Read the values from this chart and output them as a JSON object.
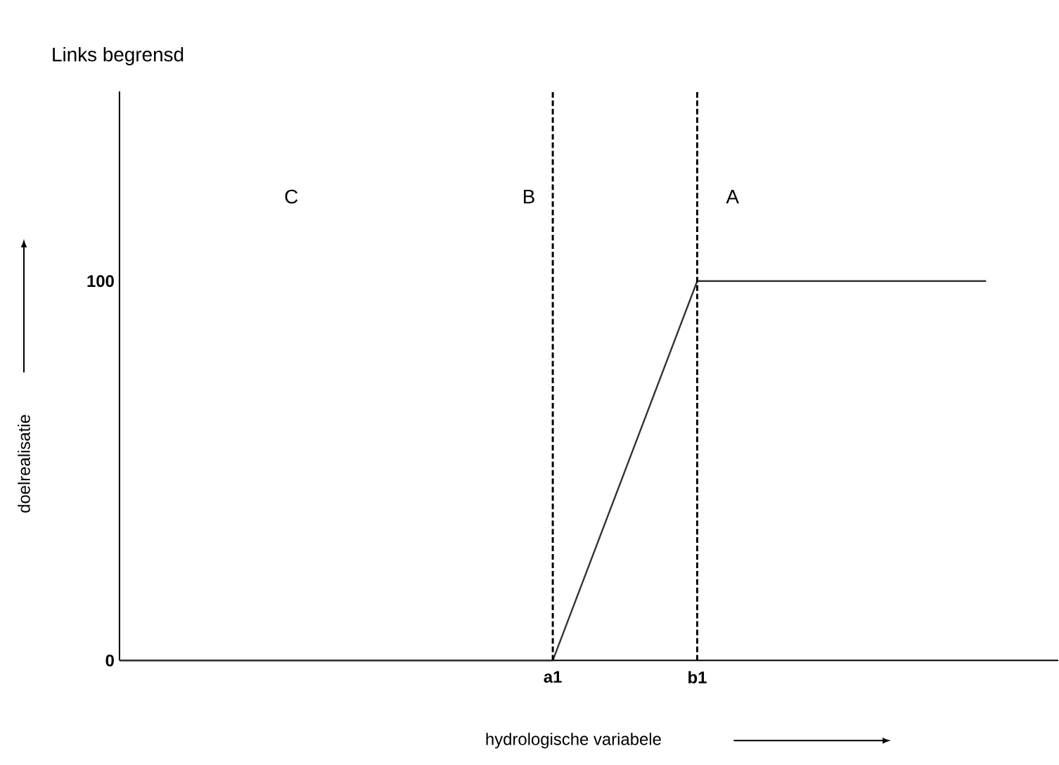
{
  "chart_data": {
    "type": "line",
    "title": "Links begrensd",
    "xlabel": "hydrologische variabele",
    "ylabel": "doelrealisatie",
    "categories": [
      null,
      null,
      null,
      "a1",
      "b1",
      null,
      null
    ],
    "series": [
      {
        "color": "#333333",
        "values": [
          0,
          0,
          0,
          0,
          100,
          100,
          100
        ]
      }
    ],
    "ylim": [
      0,
      150
    ],
    "yticks": [
      0,
      100
    ],
    "ref_lines": [
      {
        "axis": "x",
        "value": "a1",
        "color": "#000000",
        "line_style": "dashed"
      },
      {
        "axis": "x",
        "value": "b1",
        "color": "#000000",
        "line_style": "dashed"
      }
    ],
    "annotations": [
      "C",
      "B",
      "A"
    ],
    "grid": false,
    "marker": "none",
    "line_style": "solid"
  }
}
